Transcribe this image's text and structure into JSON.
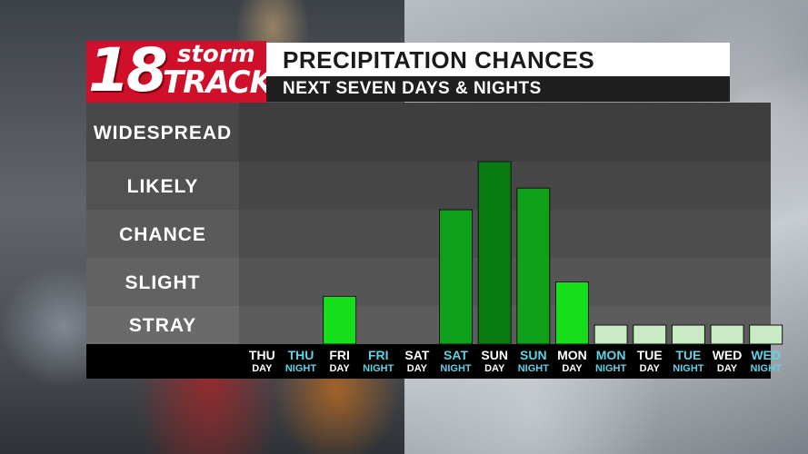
{
  "logo": {
    "number": "18",
    "word1": "storm",
    "word2": "TRACK"
  },
  "header": {
    "title": "PRECIPITATION CHANCES",
    "subtitle": "NEXT SEVEN DAYS & NIGHTS"
  },
  "colors": {
    "logo_red": "#d0102a",
    "day_label": "#ffffff",
    "night_label": "#5fd3e6",
    "bar_bright_green": "#16e01c",
    "bar_green": "#0fa11a",
    "bar_dark_green": "#0a7a12",
    "bar_light_green": "#c9ebc4"
  },
  "chart_data": {
    "type": "bar",
    "categories": [
      {
        "day": "THU",
        "period": "DAY"
      },
      {
        "day": "THU",
        "period": "NIGHT"
      },
      {
        "day": "FRI",
        "period": "DAY"
      },
      {
        "day": "FRI",
        "period": "NIGHT"
      },
      {
        "day": "SAT",
        "period": "DAY"
      },
      {
        "day": "SAT",
        "period": "NIGHT"
      },
      {
        "day": "SUN",
        "period": "DAY"
      },
      {
        "day": "SUN",
        "period": "NIGHT"
      },
      {
        "day": "MON",
        "period": "DAY"
      },
      {
        "day": "MON",
        "period": "NIGHT"
      },
      {
        "day": "TUE",
        "period": "DAY"
      },
      {
        "day": "TUE",
        "period": "NIGHT"
      },
      {
        "day": "WED",
        "period": "DAY"
      },
      {
        "day": "WED",
        "period": "NIGHT"
      }
    ],
    "levels": [
      "STRAY",
      "SLIGHT",
      "CHANCE",
      "LIKELY",
      "WIDESPREAD"
    ],
    "values": [
      0,
      0,
      1.2,
      0,
      0,
      3.0,
      4.0,
      3.45,
      1.5,
      0.5,
      0.5,
      0.5,
      0.5,
      0.5
    ],
    "bar_colors": [
      "#16e01c",
      "#16e01c",
      "#16e01c",
      "#16e01c",
      "#16e01c",
      "#0fa11a",
      "#0a7a12",
      "#0fa11a",
      "#16e01c",
      "#c9ebc4",
      "#c9ebc4",
      "#c9ebc4",
      "#c9ebc4",
      "#c9ebc4"
    ],
    "ylim": [
      0,
      5
    ]
  }
}
